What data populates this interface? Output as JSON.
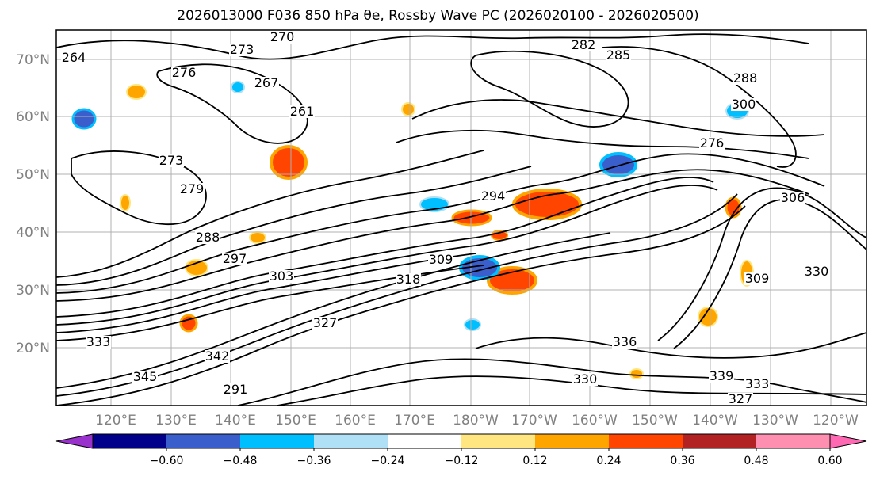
{
  "title": "2026013000 F036 850 hPa θe, Rossby Wave PC (2026020100 - 2026020500)",
  "map": {
    "lat_labels": [
      "70°N",
      "60°N",
      "50°N",
      "40°N",
      "30°N",
      "20°N"
    ],
    "lon_labels": [
      "120°E",
      "130°E",
      "140°E",
      "150°E",
      "160°E",
      "170°E",
      "180°W",
      "170°W",
      "160°W",
      "150°W",
      "140°W",
      "130°W",
      "120°W"
    ],
    "contour_labels": [
      "270",
      "273",
      "264",
      "276",
      "267",
      "261",
      "273",
      "279",
      "288",
      "297",
      "303",
      "309",
      "318",
      "327",
      "333",
      "342",
      "345",
      "291",
      "294",
      "276",
      "282",
      "285",
      "288",
      "300",
      "306",
      "309",
      "330",
      "336",
      "339",
      "333",
      "327",
      "330"
    ]
  },
  "colorbar": {
    "ticks": [
      "−0.60",
      "−0.48",
      "−0.36",
      "−0.24",
      "−0.12",
      "0.12",
      "0.24",
      "0.36",
      "0.48",
      "0.60"
    ],
    "colors": [
      "#9932cc",
      "#00008b",
      "#3a5fcd",
      "#00bfff",
      "#b0e0f6",
      "#ffffff",
      "#ffe680",
      "#ffa500",
      "#ff4500",
      "#b22222",
      "#ff8fb0",
      "#ff69b4"
    ]
  }
}
